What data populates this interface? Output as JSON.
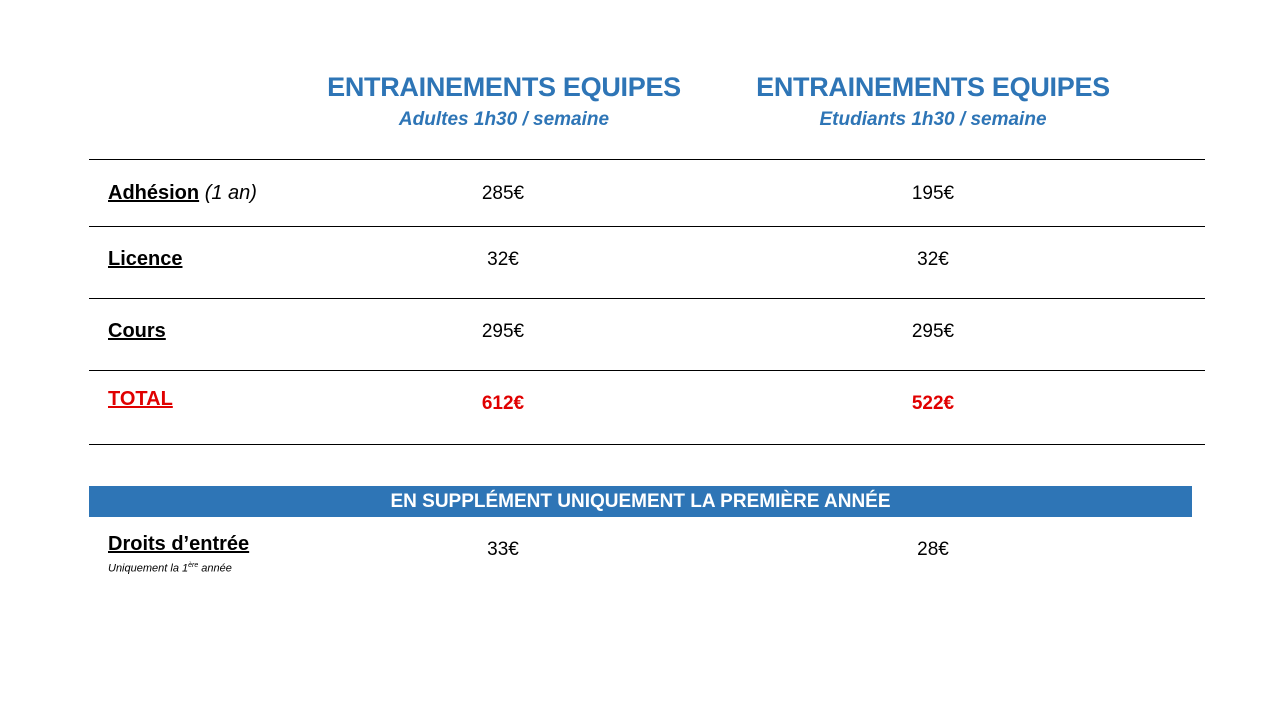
{
  "colors": {
    "heading": "#2e75b6",
    "banner_bg": "#2e75b6",
    "total": "#e00000"
  },
  "columns": [
    {
      "title": "ENTRAINEMENTS EQUIPES",
      "subtitle": "Adultes 1h30 / semaine"
    },
    {
      "title": "ENTRAINEMENTS EQUIPES",
      "subtitle": "Etudiants 1h30 / semaine"
    }
  ],
  "rows": {
    "adhesion": {
      "label": "Adhésion",
      "aside": "(1 an)",
      "values": [
        "285€",
        "195€"
      ]
    },
    "licence": {
      "label": "Licence",
      "values": [
        "32€",
        "32€"
      ]
    },
    "cours": {
      "label": "Cours",
      "values": [
        "295€",
        "295€"
      ]
    },
    "total": {
      "label": "TOTAL",
      "values": [
        "612€",
        "522€"
      ]
    }
  },
  "supplement": {
    "banner": "EN SUPPLÉMENT UNIQUEMENT LA PREMIÈRE ANNÉE",
    "label": "Droits d’entrée",
    "note_prefix": "Uniquement la 1",
    "note_sup": "ère",
    "note_suffix": " année",
    "values": [
      "33€",
      "28€"
    ]
  }
}
